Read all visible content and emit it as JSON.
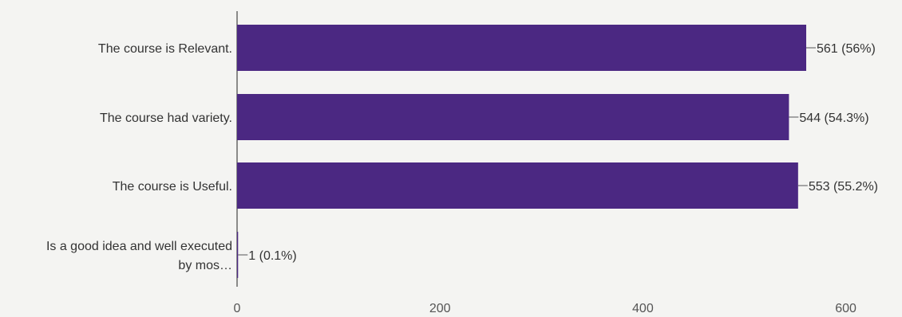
{
  "chart_data": {
    "type": "bar",
    "orientation": "horizontal",
    "categories": [
      [
        "The course is Relevant."
      ],
      [
        "The course had variety."
      ],
      [
        "The course is Useful."
      ],
      [
        "Is a good idea and well executed",
        "by mos…"
      ]
    ],
    "values": [
      561,
      544,
      553,
      1
    ],
    "data_labels": [
      "561 (56%)",
      "544 (54.3%)",
      "553 (55.2%)",
      "1 (0.1%)"
    ],
    "xticks": [
      0,
      200,
      400,
      600
    ],
    "xlim": [
      0,
      600
    ],
    "grid": false,
    "bar_color": "#4b2882"
  }
}
